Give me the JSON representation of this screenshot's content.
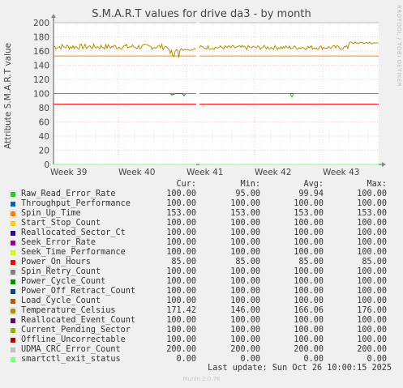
{
  "page": {
    "side_label": "RRDTOOL / TOBI OETIKER",
    "footer": "Munin 2.0.76"
  },
  "chart_data": {
    "type": "line",
    "title": "S.M.A.R.T values for drive da3 - by month",
    "ylabel": "Attribute S.M.A.R.T value",
    "ylim": [
      0,
      200
    ],
    "yticks": [
      0,
      20,
      40,
      60,
      80,
      100,
      120,
      140,
      160,
      180,
      200
    ],
    "xticks": [
      "Week 39",
      "Week 40",
      "Week 41",
      "Week 42",
      "Week 43"
    ],
    "grid": true,
    "legend_headers": [
      "Cur:",
      "Min:",
      "Avg:",
      "Max:"
    ],
    "series": [
      {
        "name": "Raw_Read_Error_Rate",
        "color": "#22cc22",
        "cur": "100.00",
        "min": "95.00",
        "avg": "99.94",
        "max": "100.00"
      },
      {
        "name": "Throughput_Performance",
        "color": "#0066b3",
        "cur": "100.00",
        "min": "100.00",
        "avg": "100.00",
        "max": "100.00"
      },
      {
        "name": "Spin_Up_Time",
        "color": "#ff8000",
        "cur": "153.00",
        "min": "153.00",
        "avg": "153.00",
        "max": "153.00"
      },
      {
        "name": "Start_Stop_Count",
        "color": "#ffcc00",
        "cur": "100.00",
        "min": "100.00",
        "avg": "100.00",
        "max": "100.00"
      },
      {
        "name": "Reallocated_Sector_Ct",
        "color": "#330099",
        "cur": "100.00",
        "min": "100.00",
        "avg": "100.00",
        "max": "100.00"
      },
      {
        "name": "Seek_Error_Rate",
        "color": "#990099",
        "cur": "100.00",
        "min": "100.00",
        "avg": "100.00",
        "max": "100.00"
      },
      {
        "name": "Seek_Time_Performance",
        "color": "#ccff00",
        "cur": "100.00",
        "min": "100.00",
        "avg": "100.00",
        "max": "100.00"
      },
      {
        "name": "Power_On_Hours",
        "color": "#ff0000",
        "cur": "85.00",
        "min": "85.00",
        "avg": "85.00",
        "max": "85.00"
      },
      {
        "name": "Spin_Retry_Count",
        "color": "#808080",
        "cur": "100.00",
        "min": "100.00",
        "avg": "100.00",
        "max": "100.00"
      },
      {
        "name": "Power_Cycle_Count",
        "color": "#008f00",
        "cur": "100.00",
        "min": "100.00",
        "avg": "100.00",
        "max": "100.00"
      },
      {
        "name": "Power_Off_Retract_Count",
        "color": "#00487d",
        "cur": "100.00",
        "min": "100.00",
        "avg": "100.00",
        "max": "100.00"
      },
      {
        "name": "Load_Cycle_Count",
        "color": "#b35a00",
        "cur": "100.00",
        "min": "100.00",
        "avg": "100.00",
        "max": "100.00"
      },
      {
        "name": "Temperature_Celsius",
        "color": "#b38f00",
        "cur": "171.42",
        "min": "146.00",
        "avg": "166.06",
        "max": "176.00"
      },
      {
        "name": "Reallocated_Event_Count",
        "color": "#6b006b",
        "cur": "100.00",
        "min": "100.00",
        "avg": "100.00",
        "max": "100.00"
      },
      {
        "name": "Current_Pending_Sector",
        "color": "#8fb300",
        "cur": "100.00",
        "min": "100.00",
        "avg": "100.00",
        "max": "100.00"
      },
      {
        "name": "Offline_Uncorrectable",
        "color": "#b30000",
        "cur": "100.00",
        "min": "100.00",
        "avg": "100.00",
        "max": "100.00"
      },
      {
        "name": "UDMA_CRC_Error_Count",
        "color": "#bebebe",
        "cur": "200.00",
        "min": "200.00",
        "avg": "200.00",
        "max": "200.00"
      },
      {
        "name": "smartctl_exit_status",
        "color": "#80ff80",
        "cur": "0.00",
        "min": "0.00",
        "avg": "0.00",
        "max": "0.00"
      }
    ]
  },
  "last_update": "Last update: Sun Oct 26 10:00:15 2025"
}
